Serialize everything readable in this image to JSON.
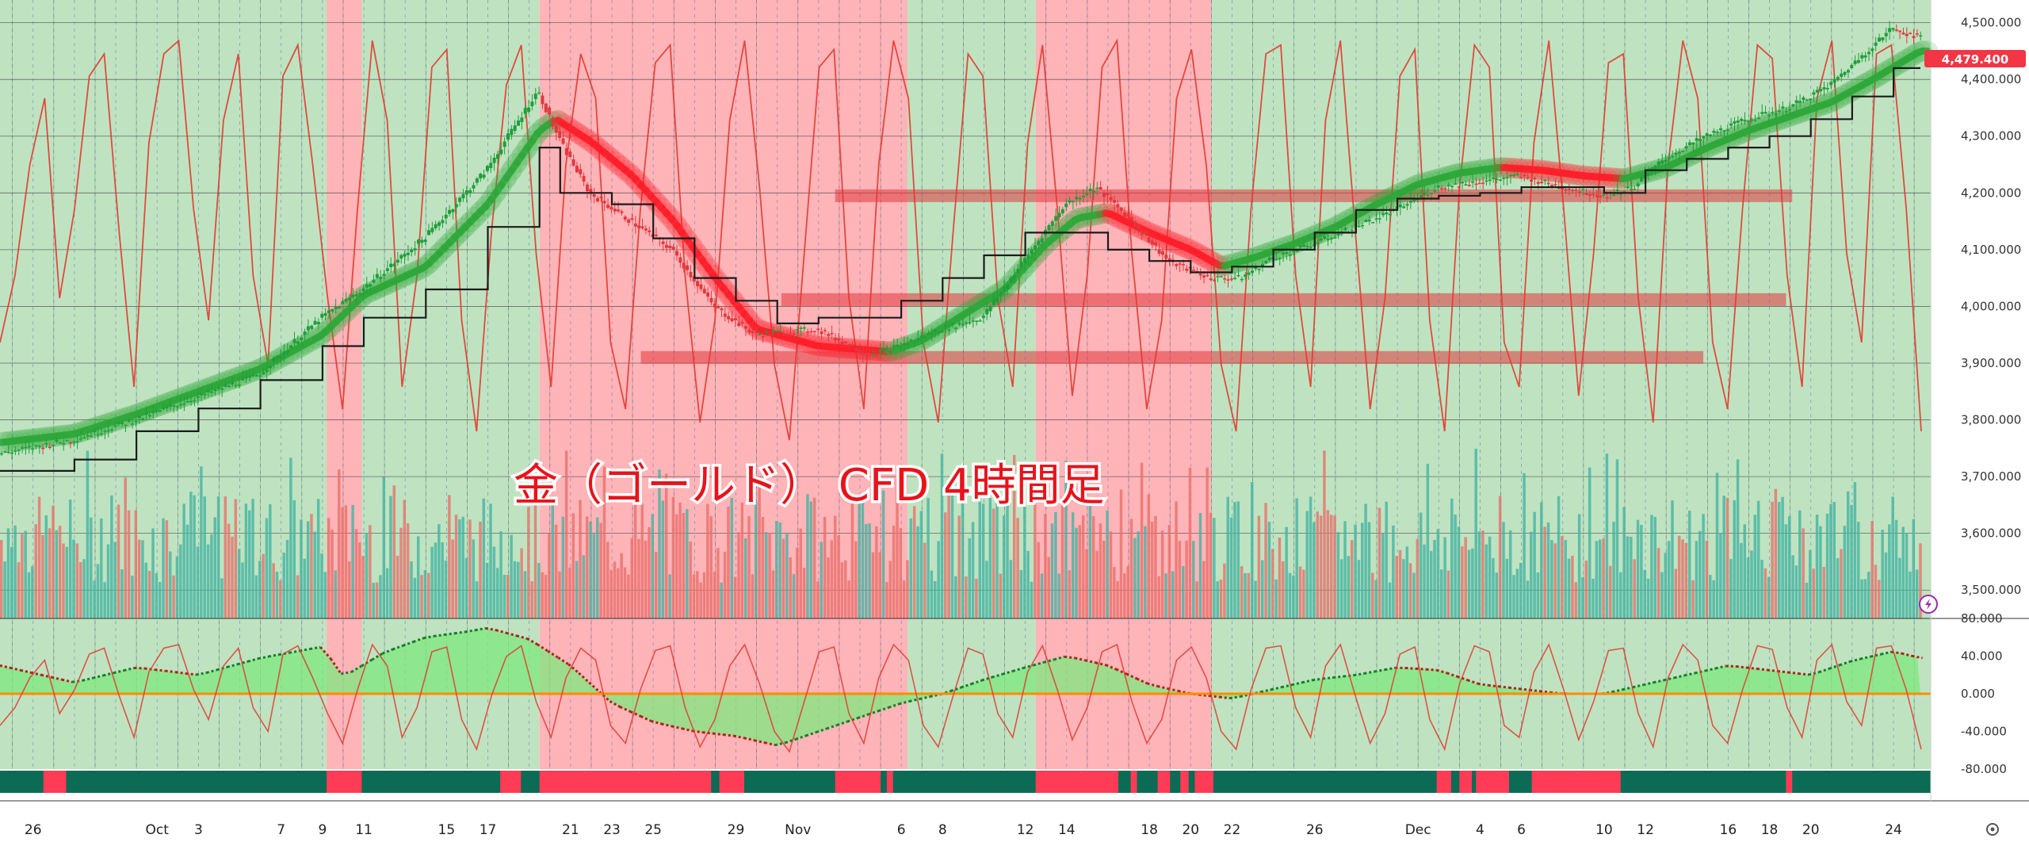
{
  "overlay_title": "金（ゴールド） CFD 4時間足",
  "last_price_label": "4,479.400",
  "colors": {
    "bull_zone": "#bfe3c0",
    "bear_zone": "#ffb4b8",
    "candle_up": "#1f9e3a",
    "candle_down": "#e0393e",
    "rsi_line": "#e23a30",
    "baseline": "#1b1b1b",
    "ma_bull": "#2fa83a",
    "ma_bear": "#ff1f2a",
    "vol_up": "#45b3a2",
    "vol_down": "#e8706c",
    "osc_zero": "#ff8c00",
    "strip_bull": "#0b6b55",
    "strip_bear": "#ff3b55",
    "price_box": "#f23645"
  },
  "icons": {
    "lightning": "lightning-icon",
    "settings": "settings-icon"
  },
  "chart_data": {
    "type": "line",
    "title": "",
    "instrument": "金（ゴールド） CFD",
    "timeframe": "4時間足",
    "xlabel": "",
    "ylabel": "",
    "ylim": [
      3450,
      4540
    ],
    "grid": true,
    "x_ticks": [
      "26",
      "Oct",
      "3",
      "7",
      "9",
      "11",
      "15",
      "17",
      "21",
      "23",
      "25",
      "29",
      "Nov",
      "6",
      "8",
      "12",
      "14",
      "18",
      "20",
      "22",
      "26",
      "Dec",
      "4",
      "6",
      "10",
      "12",
      "16",
      "18",
      "20",
      "24"
    ],
    "x_tick_days": [
      -5,
      1,
      3,
      7,
      9,
      11,
      15,
      17,
      21,
      23,
      25,
      29,
      32,
      37,
      39,
      43,
      45,
      49,
      51,
      53,
      57,
      62,
      65,
      67,
      71,
      73,
      77,
      79,
      81,
      85
    ],
    "x_range_days": [
      -6.6,
      86.8
    ],
    "y_ticks": [
      "4,500.000",
      "4,400.000",
      "4,300.000",
      "4,200.000",
      "4,100.000",
      "4,000.000",
      "3,900.000",
      "3,800.000",
      "3,700.000",
      "3,600.000",
      "3,500.000"
    ],
    "y_tick_values": [
      4500,
      4400,
      4300,
      4200,
      4100,
      4000,
      3900,
      3800,
      3700,
      3600,
      3500
    ],
    "last_price": 4479.4,
    "background_zones": [
      {
        "state": "bull",
        "from": -6.6,
        "to": 9.2
      },
      {
        "state": "bear",
        "from": 9.2,
        "to": 10.9
      },
      {
        "state": "bull",
        "from": 10.9,
        "to": 19.5
      },
      {
        "state": "bear",
        "from": 19.5,
        "to": 37.3
      },
      {
        "state": "bull",
        "from": 37.3,
        "to": 43.5
      },
      {
        "state": "bear",
        "from": 43.5,
        "to": 52.0
      },
      {
        "state": "bull",
        "from": 52.0,
        "to": 86.8
      }
    ],
    "horizontal_levels": [
      {
        "value": 4195,
        "from": 33.8,
        "to": 80.1
      },
      {
        "value": 4012,
        "from": 31.2,
        "to": 79.8
      },
      {
        "value": 3910,
        "from": 24.4,
        "to": 75.8
      }
    ],
    "price_series": {
      "name": "",
      "days": [
        -6.6,
        -3,
        0,
        3,
        6,
        9,
        11,
        14,
        17,
        19.5,
        20.6,
        22,
        24,
        26,
        28,
        30,
        33,
        35.5,
        37,
        39,
        41,
        43,
        45,
        46.5,
        48,
        50,
        52,
        53.5,
        55,
        57,
        59,
        61,
        63,
        65,
        67,
        69,
        71,
        72.5,
        74,
        76,
        78,
        80,
        82,
        83.5,
        85,
        86.3
      ],
      "values": [
        3740,
        3765,
        3800,
        3840,
        3880,
        3980,
        4030,
        4120,
        4240,
        4380,
        4290,
        4200,
        4150,
        4100,
        4000,
        3950,
        3960,
        3915,
        3930,
        3960,
        3980,
        4080,
        4180,
        4210,
        4160,
        4080,
        4050,
        4050,
        4085,
        4110,
        4140,
        4170,
        4210,
        4220,
        4230,
        4210,
        4195,
        4210,
        4260,
        4300,
        4330,
        4350,
        4390,
        4440,
        4490,
        4475
      ]
    },
    "moving_average": {
      "name": "",
      "days": [
        -6.6,
        -3,
        0,
        3,
        6,
        9,
        11,
        14,
        17,
        19.5,
        20.3,
        22,
        24,
        26,
        28,
        30,
        33,
        36.5,
        38,
        40,
        42,
        44,
        45.5,
        47,
        49,
        51,
        52.5,
        54,
        56,
        58,
        60,
        62,
        64,
        66,
        68,
        70,
        72,
        74,
        76,
        78,
        80,
        82,
        84,
        86.3
      ],
      "values": [
        3760,
        3775,
        3810,
        3850,
        3890,
        3950,
        4020,
        4070,
        4180,
        4310,
        4330,
        4290,
        4230,
        4150,
        4050,
        3960,
        3930,
        3920,
        3940,
        3985,
        4030,
        4110,
        4155,
        4165,
        4130,
        4100,
        4070,
        4085,
        4110,
        4140,
        4180,
        4215,
        4235,
        4245,
        4240,
        4230,
        4225,
        4245,
        4280,
        4310,
        4335,
        4360,
        4400,
        4450
      ]
    },
    "baseline_series": {
      "name": "",
      "days": [
        -6.6,
        -3,
        0,
        3,
        6,
        9,
        11,
        14,
        17,
        19.5,
        20.5,
        23,
        25,
        27,
        29,
        31,
        33,
        35,
        37,
        39,
        41,
        43,
        45,
        47,
        49,
        51,
        53,
        55,
        57,
        59,
        61,
        63,
        65,
        67,
        69,
        71,
        73,
        75,
        77,
        79,
        81,
        83,
        85,
        86.3
      ],
      "values": [
        3710,
        3730,
        3780,
        3820,
        3870,
        3930,
        3980,
        4030,
        4140,
        4280,
        4200,
        4180,
        4120,
        4050,
        4010,
        3970,
        3980,
        3980,
        4010,
        4050,
        4090,
        4130,
        4130,
        4100,
        4080,
        4060,
        4070,
        4100,
        4130,
        4170,
        4190,
        4195,
        4200,
        4210,
        4210,
        4200,
        4240,
        4260,
        4280,
        4300,
        4330,
        4370,
        4420,
        4420
      ]
    },
    "rsi_line": {
      "name": "",
      "scale": [
        0,
        100
      ],
      "values": [
        30,
        45,
        70,
        85,
        40,
        60,
        90,
        95,
        55,
        20,
        75,
        95,
        98,
        60,
        35,
        80,
        95,
        45,
        25,
        90,
        97,
        70,
        40,
        15,
        60,
        98,
        80,
        20,
        45,
        92,
        96,
        35,
        10,
        55,
        88,
        97,
        50,
        20,
        70,
        95,
        85,
        30,
        15,
        60,
        93,
        97,
        45,
        12,
        35,
        80,
        98,
        65,
        25,
        8,
        50,
        92,
        96,
        40,
        15,
        70,
        98,
        85,
        30,
        12,
        55,
        95,
        90,
        40,
        20,
        75,
        97,
        60,
        18,
        45,
        92,
        98,
        50,
        15,
        35,
        85,
        96,
        70,
        25,
        10,
        60,
        95,
        97,
        45,
        20,
        80,
        98,
        55,
        15,
        40,
        90,
        96,
        35,
        10,
        65,
        97,
        92,
        30,
        20,
        75,
        98,
        60,
        18,
        50,
        93,
        95,
        40,
        12,
        70,
        98,
        85,
        30,
        15,
        60,
        97,
        94,
        45,
        20,
        85,
        98,
        50,
        30,
        95,
        97,
        60,
        10
      ]
    },
    "oscillator": {
      "ylim": [
        -80,
        80
      ],
      "y_ticks": [
        "80.000",
        "40.000",
        "0.000",
        "-40.000",
        "-80.000"
      ],
      "y_tick_values": [
        80,
        40,
        0,
        -40,
        -80
      ],
      "days": [
        -6.6,
        -3,
        0,
        3,
        6,
        9,
        10,
        12,
        14,
        16,
        17,
        19,
        21,
        23,
        25,
        27,
        29,
        31,
        33,
        35,
        37,
        39,
        41,
        43,
        45,
        47,
        49,
        51,
        53,
        55,
        57,
        59,
        61,
        63,
        65,
        67,
        69,
        71,
        73,
        75,
        77,
        79,
        81,
        83,
        85,
        86.3
      ],
      "values": [
        30,
        12,
        28,
        20,
        38,
        50,
        18,
        44,
        60,
        66,
        70,
        58,
        30,
        -10,
        -30,
        -40,
        -45,
        -55,
        -40,
        -25,
        -10,
        0,
        15,
        28,
        40,
        30,
        10,
        0,
        -5,
        5,
        15,
        20,
        28,
        25,
        10,
        5,
        0,
        0,
        10,
        20,
        30,
        25,
        20,
        35,
        45,
        38
      ]
    },
    "trend_strip": [
      {
        "state": "bear",
        "from": -4.5,
        "to": -3.4
      },
      {
        "state": "bear",
        "from": 9.2,
        "to": 10.9
      },
      {
        "state": "bear",
        "from": 17.6,
        "to": 18.6
      },
      {
        "state": "bear",
        "from": 19.5,
        "to": 27.8
      },
      {
        "state": "bear",
        "from": 28.2,
        "to": 29.4
      },
      {
        "state": "bear",
        "from": 33.8,
        "to": 36.0
      },
      {
        "state": "bear",
        "from": 36.3,
        "to": 36.6
      },
      {
        "state": "bear",
        "from": 43.5,
        "to": 47.5
      },
      {
        "state": "bear",
        "from": 48.1,
        "to": 48.4
      },
      {
        "state": "bear",
        "from": 49.4,
        "to": 50.0
      },
      {
        "state": "bear",
        "from": 50.5,
        "to": 50.9
      },
      {
        "state": "bear",
        "from": 51.2,
        "to": 52.1
      },
      {
        "state": "bear",
        "from": 62.9,
        "to": 63.6
      },
      {
        "state": "bear",
        "from": 64.0,
        "to": 64.6
      },
      {
        "state": "bear",
        "from": 64.8,
        "to": 66.4
      },
      {
        "state": "bear",
        "from": 67.5,
        "to": 71.8
      },
      {
        "state": "bear",
        "from": 79.8,
        "to": 80.1
      }
    ]
  }
}
